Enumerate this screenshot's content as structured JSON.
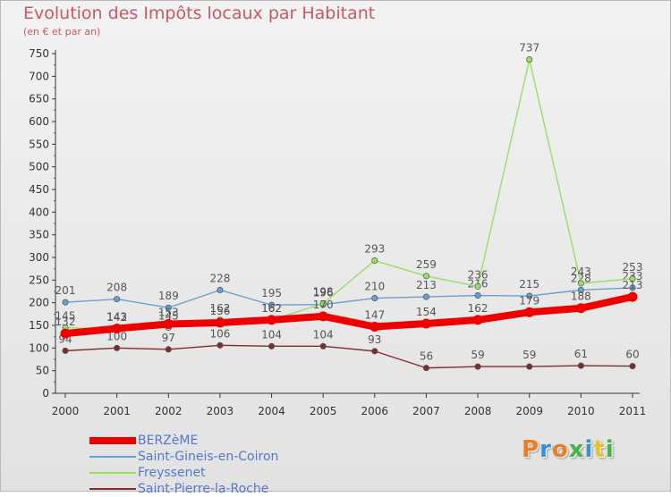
{
  "header": {
    "title": "Evolution des Impôts locaux par Habitant",
    "subtitle": "(en € et par an)"
  },
  "logo": {
    "text": "Proxiti",
    "letter_colors": [
      "#e87d2a",
      "#3a8ed8",
      "#e87d2a",
      "#46b34a",
      "#3a8ed8",
      "#e8c22a",
      "#46b34a"
    ]
  },
  "chart_data": {
    "type": "line",
    "title": "Evolution des Impôts locaux par Habitant",
    "subtitle": "(en € et par an)",
    "xlabel": "",
    "ylabel": "",
    "ylim": [
      0,
      750
    ],
    "yticks": [
      0,
      50,
      100,
      150,
      200,
      250,
      300,
      350,
      400,
      450,
      500,
      550,
      600,
      650,
      700,
      750
    ],
    "grid": false,
    "legend_position": "bottom-left",
    "x": [
      "2000",
      "2001",
      "2002",
      "2003",
      "2004",
      "2005",
      "2006",
      "2007",
      "2008",
      "2009",
      "2010",
      "2011"
    ],
    "series": [
      {
        "name": "Saint-Gineis-en-Coiron",
        "color": "#6a9fd0",
        "values": [
          201,
          208,
          189,
          228,
          195,
          196,
          210,
          213,
          216,
          215,
          228,
          233
        ],
        "labels": [
          "201",
          "208",
          "189",
          "228",
          "195",
          "196",
          "210",
          "213",
          "216",
          "215",
          "228",
          "233"
        ]
      },
      {
        "name": "Freyssenet",
        "color": "#99dd66",
        "values": [
          145,
          142,
          145,
          162,
          162,
          198,
          293,
          259,
          236,
          737,
          243,
          253
        ],
        "labels": [
          "145",
          "142",
          "145",
          "162",
          "162",
          "198",
          "293",
          "259",
          "236",
          "737",
          "243",
          "253"
        ]
      },
      {
        "name": "Saint-Pierre-la-Roche",
        "color": "#7a2e2e",
        "values": [
          94,
          100,
          97,
          106,
          104,
          104,
          93,
          56,
          59,
          59,
          61,
          60
        ],
        "labels": [
          "94",
          "100",
          "97",
          "106",
          "104",
          "104",
          "93",
          "56",
          "59",
          "59",
          "61",
          "60"
        ]
      },
      {
        "name": "BERZèME",
        "color": "#ee0000",
        "values": [
          132,
          143,
          153,
          156,
          162,
          170,
          147,
          154,
          162,
          179,
          188,
          213
        ],
        "labels": [
          "132",
          "143",
          "153",
          "156",
          "162",
          "170",
          "147",
          "154",
          "162",
          "179",
          "188",
          "213"
        ]
      }
    ],
    "legend_order": [
      "BERZèME",
      "Saint-Gineis-en-Coiron",
      "Freyssenet",
      "Saint-Pierre-la-Roche"
    ]
  }
}
